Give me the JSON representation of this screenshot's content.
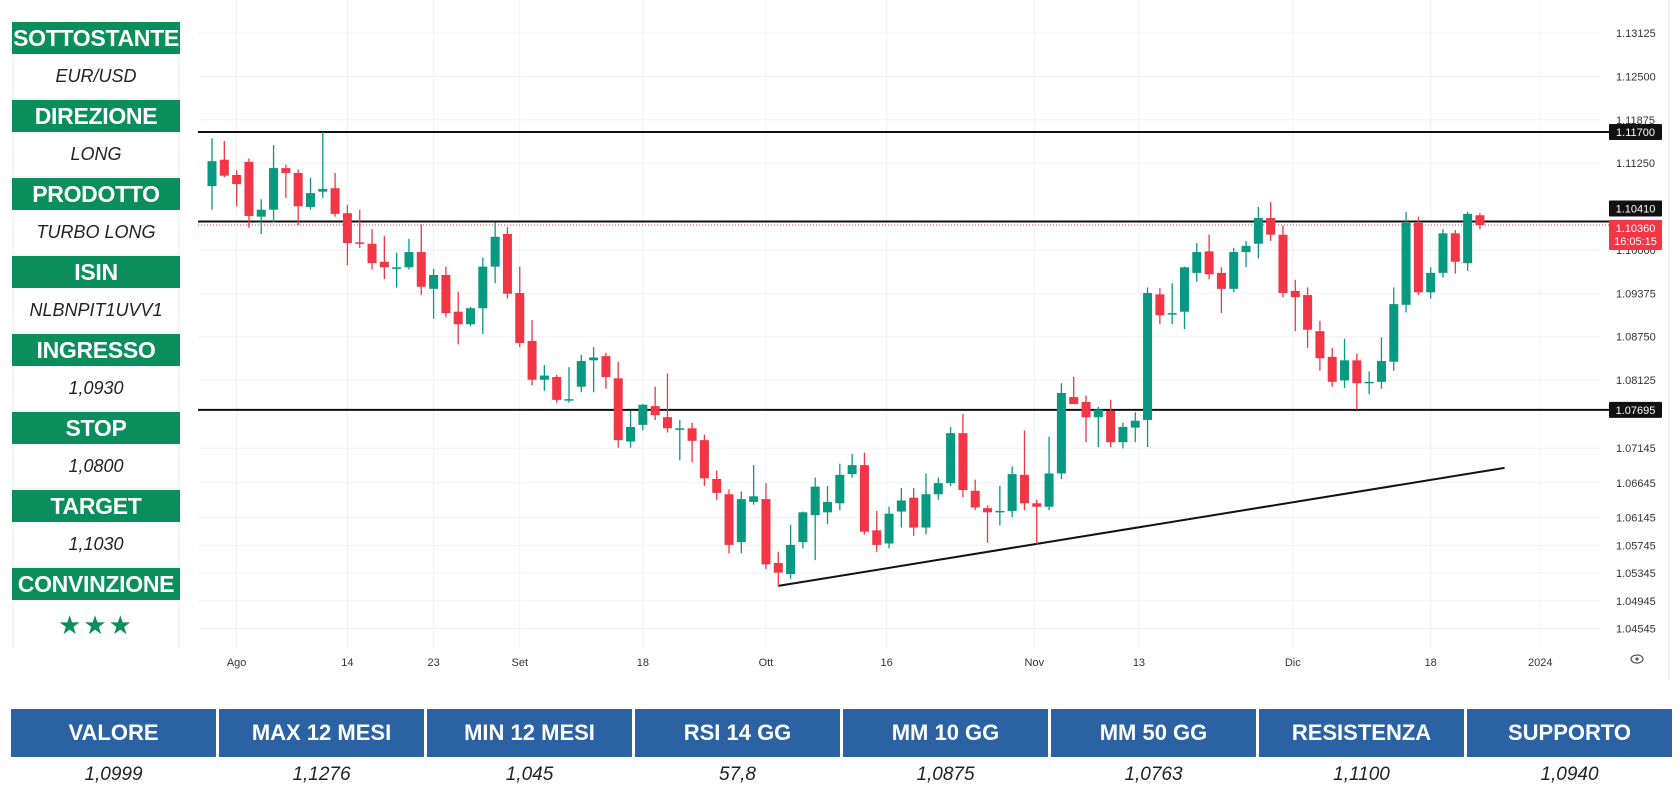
{
  "sidebar": {
    "items": [
      {
        "label": "SOTTOSTANTE",
        "value": "EUR/USD"
      },
      {
        "label": "DIREZIONE",
        "value": "LONG"
      },
      {
        "label": "PRODOTTO",
        "value": "TURBO LONG"
      },
      {
        "label": "ISIN",
        "value": "NLBNPIT1UVV1"
      },
      {
        "label": "INGRESSO",
        "value": "1,0930"
      },
      {
        "label": "STOP",
        "value": "1,0800"
      },
      {
        "label": "TARGET",
        "value": "1,1030"
      },
      {
        "label": "CONVINZIONE",
        "value": "★★★"
      }
    ],
    "conviction_stars": 3
  },
  "stats_table": {
    "headers": [
      "VALORE",
      "MAX 12 MESI",
      "MIN 12 MESI",
      "RSI 14 GG",
      "MM 10 GG",
      "MM 50 GG",
      "RESISTENZA",
      "SUPPORTO"
    ],
    "values": [
      "1,0999",
      "1,1276",
      "1,045",
      "57,8",
      "1,0875",
      "1,0763",
      "1,1100",
      "1,0940"
    ]
  },
  "colors": {
    "up": "#089981",
    "down": "#f23645",
    "sidebar_green": "#0a8f5c",
    "table_blue": "#2a62a4"
  },
  "chart_data": {
    "type": "candlestick",
    "symbol": "EUR/USD",
    "ylim": [
      1.0445,
      1.1325
    ],
    "y_ticks": [
      "1.13125",
      "1.12500",
      "1.11875",
      "1.11250",
      "1.10000",
      "1.09375",
      "1.08750",
      "1.08125",
      "1.07145",
      "1.06645",
      "1.06145",
      "1.05745",
      "1.05345",
      "1.04945",
      "1.04545"
    ],
    "x_ticks": [
      {
        "label": "Ago",
        "bar": 2.0
      },
      {
        "label": "14",
        "bar": 11.0
      },
      {
        "label": "23",
        "bar": 18.0
      },
      {
        "label": "Set",
        "bar": 25.0
      },
      {
        "label": "18",
        "bar": 35.0
      },
      {
        "label": "Ott",
        "bar": 45.0
      },
      {
        "label": "16",
        "bar": 54.8
      },
      {
        "label": "Nov",
        "bar": 66.8
      },
      {
        "label": "13",
        "bar": 75.3
      },
      {
        "label": "Dic",
        "bar": 87.8
      },
      {
        "label": "18",
        "bar": 99.0
      },
      {
        "label": "2024",
        "bar": 107.9
      }
    ],
    "horizontal_lines": [
      {
        "price": 1.117,
        "label": "1.11700"
      },
      {
        "price": 1.1041,
        "label": "1.10410"
      },
      {
        "price": 1.07695,
        "label": "1.07695"
      }
    ],
    "last_price": {
      "price": 1.1036,
      "label": "1.10360",
      "countdown": "16:05:15"
    },
    "trendline": {
      "from": {
        "bar": 46,
        "price": 1.0516
      },
      "to": {
        "bar": 105,
        "price": 1.0686
      }
    },
    "ohlc": [
      [
        1.1092,
        1.1161,
        1.1058,
        1.1128
      ],
      [
        1.113,
        1.1157,
        1.1105,
        1.1107
      ],
      [
        1.1108,
        1.1115,
        1.1063,
        1.1095
      ],
      [
        1.1127,
        1.1132,
        1.1032,
        1.1049
      ],
      [
        1.1048,
        1.1073,
        1.1023,
        1.1058
      ],
      [
        1.1058,
        1.1151,
        1.104,
        1.1118
      ],
      [
        1.1118,
        1.1123,
        1.1075,
        1.1111
      ],
      [
        1.1111,
        1.1116,
        1.1036,
        1.1063
      ],
      [
        1.1062,
        1.1104,
        1.1058,
        1.1082
      ],
      [
        1.1084,
        1.117,
        1.1075,
        1.1088
      ],
      [
        1.1089,
        1.1111,
        1.1048,
        1.1052
      ],
      [
        1.1053,
        1.1065,
        1.0978,
        1.101
      ],
      [
        1.1011,
        1.1058,
        1.1003,
        1.101
      ],
      [
        1.1009,
        1.103,
        1.0972,
        1.0981
      ],
      [
        1.0983,
        1.102,
        1.0958,
        1.0975
      ],
      [
        1.0974,
        1.0996,
        1.0946,
        1.0975
      ],
      [
        1.0975,
        1.1016,
        1.0972,
        1.0997
      ],
      [
        1.0997,
        1.1037,
        1.0935,
        1.0947
      ],
      [
        1.0944,
        1.0973,
        1.0901,
        1.0964
      ],
      [
        1.0964,
        1.0976,
        1.0903,
        1.0909
      ],
      [
        1.0911,
        1.094,
        1.0864,
        1.0893
      ],
      [
        1.0893,
        1.0918,
        1.089,
        1.0916
      ],
      [
        1.0916,
        1.0989,
        1.0879,
        1.0976
      ],
      [
        1.0976,
        1.104,
        1.0952,
        1.1019
      ],
      [
        1.1023,
        1.1033,
        1.093,
        1.0937
      ],
      [
        1.0938,
        1.0976,
        1.086,
        1.0866
      ],
      [
        1.0869,
        1.0899,
        1.0805,
        1.0813
      ],
      [
        1.0813,
        1.0834,
        1.0797,
        1.0819
      ],
      [
        1.0817,
        1.082,
        1.078,
        1.0784
      ],
      [
        1.0785,
        1.0831,
        1.078,
        1.0785
      ],
      [
        1.0803,
        1.0849,
        1.0795,
        1.084
      ],
      [
        1.0841,
        1.086,
        1.0795,
        1.0845
      ],
      [
        1.0847,
        1.0852,
        1.08,
        1.0817
      ],
      [
        1.0815,
        1.0839,
        1.0715,
        1.0726
      ],
      [
        1.0724,
        1.0768,
        1.0715,
        1.0745
      ],
      [
        1.0748,
        1.0778,
        1.074,
        1.0777
      ],
      [
        1.0775,
        1.0803,
        1.0755,
        1.0762
      ],
      [
        1.0759,
        1.0822,
        1.0737,
        1.0743
      ],
      [
        1.0743,
        1.0755,
        1.0697,
        1.0743
      ],
      [
        1.0743,
        1.0751,
        1.0694,
        1.0725
      ],
      [
        1.0726,
        1.0734,
        1.066,
        1.0671
      ],
      [
        1.067,
        1.0682,
        1.064,
        1.065
      ],
      [
        1.0648,
        1.0655,
        1.0563,
        1.0575
      ],
      [
        1.0579,
        1.0652,
        1.0563,
        1.0641
      ],
      [
        1.0637,
        1.069,
        1.0633,
        1.0645
      ],
      [
        1.0641,
        1.0664,
        1.054,
        1.0547
      ],
      [
        1.0549,
        1.0565,
        1.0516,
        1.0535
      ],
      [
        1.0533,
        1.0604,
        1.0526,
        1.0575
      ],
      [
        1.0579,
        1.0623,
        1.057,
        1.0622
      ],
      [
        1.0618,
        1.0672,
        1.0553,
        1.0659
      ],
      [
        1.0622,
        1.066,
        1.0605,
        1.0637
      ],
      [
        1.0635,
        1.0692,
        1.0625,
        1.0676
      ],
      [
        1.0677,
        1.0706,
        1.0672,
        1.069
      ],
      [
        1.069,
        1.0708,
        1.059,
        1.0594
      ],
      [
        1.0596,
        1.0624,
        1.0565,
        1.0575
      ],
      [
        1.0577,
        1.063,
        1.057,
        1.062
      ],
      [
        1.0623,
        1.0657,
        1.06,
        1.0639
      ],
      [
        1.0643,
        1.0657,
        1.0588,
        1.06
      ],
      [
        1.06,
        1.0678,
        1.059,
        1.0648
      ],
      [
        1.0648,
        1.0672,
        1.064,
        1.0664
      ],
      [
        1.0664,
        1.0745,
        1.066,
        1.0736
      ],
      [
        1.0736,
        1.0764,
        1.0644,
        1.0654
      ],
      [
        1.0653,
        1.0669,
        1.0625,
        1.0629
      ],
      [
        1.0628,
        1.0632,
        1.0578,
        1.0622
      ],
      [
        1.0623,
        1.066,
        1.0603,
        1.0624
      ],
      [
        1.0624,
        1.0688,
        1.0615,
        1.0677
      ],
      [
        1.0676,
        1.074,
        1.0625,
        1.0635
      ],
      [
        1.0635,
        1.064,
        1.0576,
        1.063
      ],
      [
        1.063,
        1.0731,
        1.0625,
        1.0678
      ],
      [
        1.0678,
        1.0808,
        1.067,
        1.0794
      ],
      [
        1.0788,
        1.0817,
        1.0778,
        1.0778
      ],
      [
        1.0781,
        1.079,
        1.0723,
        1.0759
      ],
      [
        1.0759,
        1.0774,
        1.0716,
        1.077
      ],
      [
        1.0768,
        1.0784,
        1.0716,
        1.0723
      ],
      [
        1.0723,
        1.0751,
        1.0714,
        1.0745
      ],
      [
        1.0744,
        1.0766,
        1.0723,
        1.0754
      ],
      [
        1.0755,
        1.0946,
        1.0716,
        1.0938
      ],
      [
        1.0936,
        1.0945,
        1.0893,
        1.0906
      ],
      [
        1.0909,
        1.0952,
        1.0893,
        1.0909
      ],
      [
        1.0911,
        1.0976,
        1.0886,
        1.0975
      ],
      [
        1.0967,
        1.101,
        1.0954,
        1.0997
      ],
      [
        1.0998,
        1.1022,
        1.0958,
        1.0965
      ],
      [
        1.0967,
        1.0975,
        1.0909,
        1.0944
      ],
      [
        1.0944,
        1.1003,
        1.0939,
        1.0997
      ],
      [
        1.0997,
        1.1013,
        1.0975,
        1.1006
      ],
      [
        1.1009,
        1.1062,
        1.0988,
        1.1046
      ],
      [
        1.1046,
        1.1069,
        1.1013,
        1.1022
      ],
      [
        1.1022,
        1.1035,
        1.0932,
        1.0938
      ],
      [
        1.0941,
        1.0957,
        1.0883,
        1.0932
      ],
      [
        1.0935,
        1.0946,
        1.0859,
        1.0885
      ],
      [
        1.0883,
        1.0898,
        1.0826,
        1.0844
      ],
      [
        1.0846,
        1.0859,
        1.0803,
        1.081
      ],
      [
        1.0812,
        1.0872,
        1.0801,
        1.0841
      ],
      [
        1.0841,
        1.0851,
        1.077,
        1.0808
      ],
      [
        1.081,
        1.0825,
        1.0792,
        1.081
      ],
      [
        1.081,
        1.0874,
        1.08,
        1.084
      ],
      [
        1.0839,
        1.0946,
        1.0826,
        1.0922
      ],
      [
        1.0921,
        1.1055,
        1.091,
        1.1039
      ],
      [
        1.1039,
        1.1048,
        1.0935,
        1.0939
      ],
      [
        1.0939,
        1.0975,
        1.093,
        1.0967
      ],
      [
        1.0967,
        1.103,
        1.096,
        1.1024
      ],
      [
        1.1024,
        1.1029,
        1.0966,
        1.0983
      ],
      [
        1.0981,
        1.1055,
        1.097,
        1.1052
      ],
      [
        1.105,
        1.1053,
        1.103,
        1.1036
      ]
    ]
  }
}
